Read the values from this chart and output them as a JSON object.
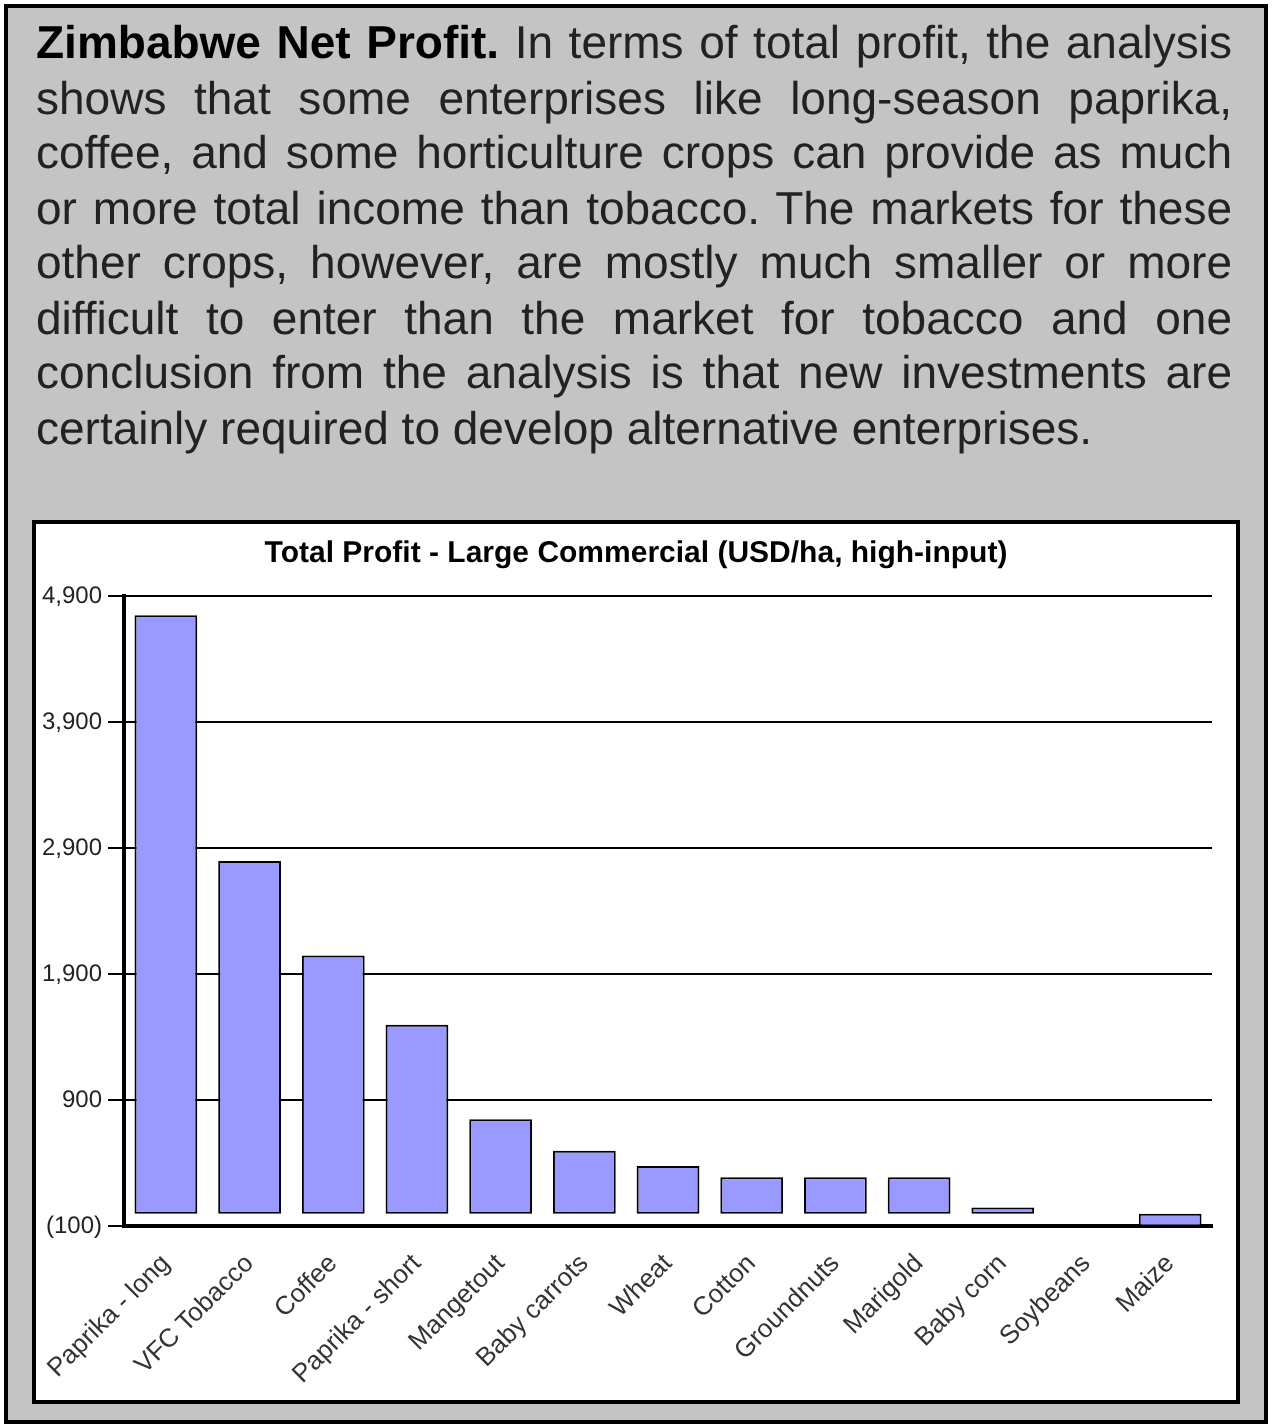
{
  "chart_data": {
    "type": "bar",
    "title": "Total Profit - Large Commercial (USD/ha, high-input)",
    "annotations": [
      "Zimbabwe Net Profit.",
      "In terms of total profit, the analysis shows that some enterprises like long-season paprika, coffee, and some horticulture crops can provide as much or more total income than tobacco. The markets for these other crops, however, are mostly much smaller or more difficult to enter than the market for tobacco and one conclusion from the analysis is that new investments are certainly required to develop alternative enterprises."
    ],
    "categories": [
      "Paprika - long",
      "VFC Tobacco",
      "Coffee",
      "Paprika - short",
      "Mangetout",
      "Baby carrots",
      "Wheat",
      "Cotton",
      "Groundnuts",
      "Marigold",
      "Baby corn",
      "Soybeans",
      "Maize"
    ],
    "values": [
      4750,
      2800,
      2050,
      1500,
      750,
      500,
      380,
      290,
      290,
      290,
      50,
      0,
      -100
    ],
    "color": "#9999ff",
    "ylim": [
      -100,
      4900
    ],
    "yticks": [
      {
        "value": -100,
        "label": "(100)"
      },
      {
        "value": 900,
        "label": "900"
      },
      {
        "value": 1900,
        "label": "1,900"
      },
      {
        "value": 2900,
        "label": "2,900"
      },
      {
        "value": 3900,
        "label": "3,900"
      },
      {
        "value": 4900,
        "label": "4,900"
      }
    ],
    "grid": "y",
    "legend": false
  }
}
